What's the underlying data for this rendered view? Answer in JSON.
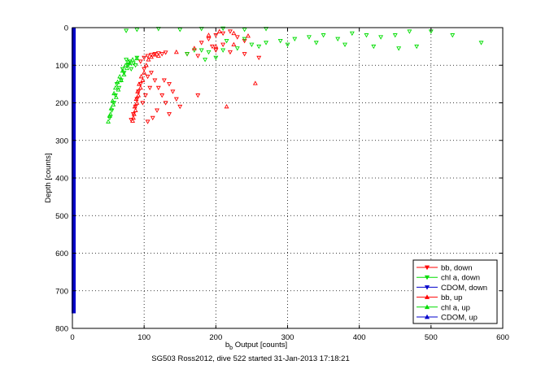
{
  "chart_data": {
    "type": "scatter",
    "title": "",
    "xlabel_main": "b",
    "xlabel_sub": "b",
    "xlabel_rest": " Output [counts]",
    "ylabel": "Depth [counts]",
    "footer": "SG503 Ross2012, dive 522 started 31-Jan-2013 17:18:21",
    "xlim": [
      0,
      600
    ],
    "ylim": [
      0,
      800
    ],
    "y_reversed": true,
    "grid": true,
    "x_ticks": [
      0,
      100,
      200,
      300,
      400,
      500,
      600
    ],
    "y_ticks": [
      0,
      100,
      200,
      300,
      400,
      500,
      600,
      700,
      800
    ],
    "legend_position": "bottom-right",
    "series": [
      {
        "name": "bb, down",
        "color": "#ff0000",
        "marker": "triangle-down",
        "values": [
          [
            95,
            90
          ],
          [
            100,
            80
          ],
          [
            105,
            75
          ],
          [
            110,
            72
          ],
          [
            115,
            70
          ],
          [
            120,
            68
          ],
          [
            125,
            70
          ],
          [
            130,
            66
          ],
          [
            100,
            110
          ],
          [
            105,
            130
          ],
          [
            95,
            150
          ],
          [
            92,
            170
          ],
          [
            90,
            190
          ],
          [
            88,
            210
          ],
          [
            85,
            230
          ],
          [
            82,
            245
          ],
          [
            110,
            120
          ],
          [
            115,
            140
          ],
          [
            108,
            160
          ],
          [
            102,
            180
          ],
          [
            98,
            200
          ],
          [
            120,
            160
          ],
          [
            125,
            180
          ],
          [
            130,
            200
          ],
          [
            118,
            220
          ],
          [
            112,
            240
          ],
          [
            105,
            250
          ],
          [
            128,
            140
          ],
          [
            135,
            150
          ],
          [
            140,
            170
          ],
          [
            145,
            190
          ],
          [
            150,
            210
          ],
          [
            135,
            230
          ],
          [
            160,
            70
          ],
          [
            175,
            75
          ],
          [
            200,
            60
          ],
          [
            220,
            65
          ],
          [
            240,
            70
          ],
          [
            260,
            80
          ],
          [
            180,
            40
          ],
          [
            190,
            30
          ],
          [
            200,
            20
          ],
          [
            210,
            15
          ],
          [
            220,
            10
          ],
          [
            230,
            25
          ],
          [
            240,
            35
          ],
          [
            210,
            45
          ],
          [
            195,
            50
          ],
          [
            175,
            180
          ]
        ]
      },
      {
        "name": "chl a, down",
        "color": "#00dd00",
        "marker": "triangle-down",
        "values": [
          [
            75,
            85
          ],
          [
            80,
            90
          ],
          [
            85,
            95
          ],
          [
            90,
            80
          ],
          [
            78,
            100
          ],
          [
            72,
            120
          ],
          [
            68,
            140
          ],
          [
            65,
            160
          ],
          [
            60,
            180
          ],
          [
            58,
            200
          ],
          [
            55,
            220
          ],
          [
            52,
            240
          ],
          [
            62,
            150
          ],
          [
            70,
            110
          ],
          [
            82,
            110
          ],
          [
            88,
            100
          ],
          [
            160,
            70
          ],
          [
            180,
            60
          ],
          [
            190,
            65
          ],
          [
            210,
            60
          ],
          [
            230,
            55
          ],
          [
            250,
            45
          ],
          [
            270,
            40
          ],
          [
            290,
            35
          ],
          [
            310,
            30
          ],
          [
            330,
            25
          ],
          [
            350,
            20
          ],
          [
            370,
            30
          ],
          [
            390,
            15
          ],
          [
            410,
            20
          ],
          [
            430,
            25
          ],
          [
            450,
            20
          ],
          [
            470,
            10
          ],
          [
            500,
            10
          ],
          [
            530,
            20
          ],
          [
            570,
            40
          ],
          [
            480,
            50
          ],
          [
            455,
            55
          ],
          [
            420,
            50
          ],
          [
            380,
            45
          ],
          [
            340,
            40
          ],
          [
            300,
            45
          ],
          [
            260,
            50
          ],
          [
            240,
            30
          ],
          [
            215,
            35
          ],
          [
            200,
            80
          ],
          [
            185,
            85
          ],
          [
            170,
            60
          ],
          [
            75,
            8
          ],
          [
            90,
            5
          ],
          [
            120,
            3
          ],
          [
            150,
            5
          ],
          [
            180,
            3
          ],
          [
            210,
            2
          ],
          [
            240,
            5
          ],
          [
            270,
            3
          ]
        ]
      },
      {
        "name": "CDOM, down",
        "color": "#0000cc",
        "marker": "triangle-down",
        "values": [
          [
            0,
            0
          ],
          [
            0,
            100
          ],
          [
            0,
            200
          ],
          [
            0,
            300
          ],
          [
            0,
            400
          ],
          [
            0,
            500
          ],
          [
            0,
            600
          ],
          [
            0,
            700
          ],
          [
            0,
            760
          ]
        ]
      },
      {
        "name": "bb, up",
        "color": "#ff0000",
        "marker": "triangle-up",
        "values": [
          [
            85,
            240
          ],
          [
            88,
            220
          ],
          [
            90,
            200
          ],
          [
            92,
            180
          ],
          [
            95,
            160
          ],
          [
            98,
            140
          ],
          [
            100,
            120
          ],
          [
            103,
            100
          ],
          [
            106,
            85
          ],
          [
            110,
            78
          ],
          [
            115,
            72
          ],
          [
            120,
            75
          ],
          [
            96,
            130
          ],
          [
            93,
            150
          ],
          [
            91,
            170
          ],
          [
            89,
            190
          ],
          [
            87,
            210
          ],
          [
            86,
            230
          ],
          [
            84,
            248
          ],
          [
            145,
            65
          ],
          [
            170,
            55
          ],
          [
            200,
            50
          ],
          [
            225,
            45
          ],
          [
            215,
            210
          ],
          [
            255,
            148
          ],
          [
            190,
            20
          ],
          [
            205,
            10
          ],
          [
            225,
            15
          ],
          [
            245,
            22
          ]
        ]
      },
      {
        "name": "chl a, up",
        "color": "#00dd00",
        "marker": "triangle-up",
        "values": [
          [
            50,
            250
          ],
          [
            52,
            235
          ],
          [
            54,
            215
          ],
          [
            56,
            195
          ],
          [
            58,
            175
          ],
          [
            60,
            160
          ],
          [
            63,
            145
          ],
          [
            66,
            130
          ],
          [
            70,
            115
          ],
          [
            74,
            100
          ],
          [
            78,
            90
          ],
          [
            84,
            85
          ],
          [
            90,
            82
          ],
          [
            53,
            230
          ],
          [
            57,
            205
          ],
          [
            61,
            185
          ],
          [
            64,
            165
          ],
          [
            68,
            140
          ],
          [
            72,
            125
          ],
          [
            76,
            108
          ],
          [
            80,
            95
          ]
        ]
      },
      {
        "name": "CDOM, up",
        "color": "#0000cc",
        "marker": "triangle-up",
        "values": [
          [
            0,
            20
          ],
          [
            0,
            150
          ],
          [
            0,
            350
          ],
          [
            0,
            550
          ],
          [
            0,
            740
          ]
        ]
      }
    ]
  }
}
